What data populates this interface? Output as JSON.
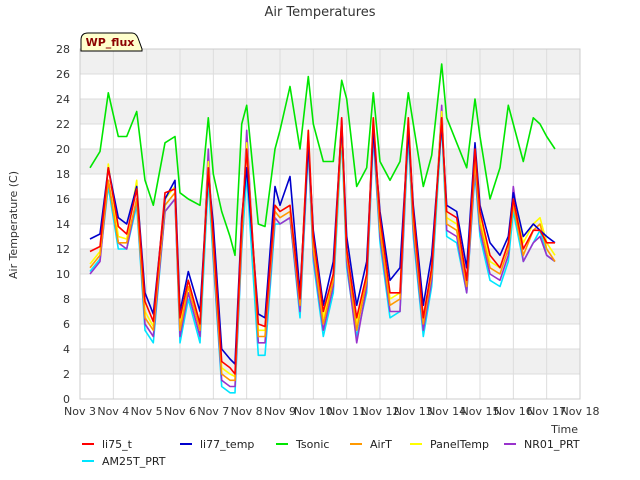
{
  "chart_data": {
    "type": "line",
    "title": "Air Temperatures",
    "xlabel": "Time",
    "ylabel": "Air Temperature (C)",
    "badge": "WP_flux",
    "x_ticks": [
      "Nov 3",
      "Nov 4",
      "Nov 5",
      "Nov 6",
      "Nov 7",
      "Nov 8",
      "Nov 9",
      "Nov 10",
      "Nov 11",
      "Nov 12",
      "Nov 13",
      "Nov 14",
      "Nov 15",
      "Nov 16",
      "Nov 17",
      "Nov 18"
    ],
    "y_ticks": [
      "0",
      "2",
      "4",
      "6",
      "8",
      "10",
      "12",
      "14",
      "16",
      "18",
      "20",
      "22",
      "24",
      "26",
      "28"
    ],
    "xlim": [
      3,
      18
    ],
    "ylim": [
      0,
      28
    ],
    "grid": true,
    "legend_position": "bottom",
    "x": [
      3.3,
      3.6,
      3.85,
      4.15,
      4.4,
      4.7,
      4.95,
      5.2,
      5.55,
      5.85,
      6.0,
      6.25,
      6.6,
      6.85,
      7.0,
      7.25,
      7.5,
      7.65,
      7.85,
      8.0,
      8.35,
      8.55,
      8.85,
      9.0,
      9.3,
      9.6,
      9.85,
      10.0,
      10.3,
      10.6,
      10.85,
      11.0,
      11.3,
      11.6,
      11.8,
      12.0,
      12.3,
      12.6,
      12.85,
      13.0,
      13.3,
      13.55,
      13.85,
      14.0,
      14.3,
      14.6,
      14.85,
      15.0,
      15.3,
      15.6,
      15.85,
      16.0,
      16.3,
      16.6,
      16.8,
      17.0,
      17.25
    ],
    "series": [
      {
        "name": "li75_t",
        "color": "#ff0000",
        "values": [
          11.8,
          12.2,
          18.5,
          13.8,
          13.2,
          16.8,
          7.8,
          6.2,
          16.5,
          16.8,
          6.5,
          9.5,
          6.0,
          18.5,
          13.0,
          3.0,
          2.5,
          2.0,
          14.0,
          20.0,
          6.0,
          5.8,
          15.5,
          15.0,
          15.5,
          8.0,
          21.5,
          13.0,
          7.0,
          10.0,
          22.5,
          12.0,
          6.5,
          10.0,
          22.5,
          14.5,
          8.5,
          8.5,
          22.5,
          15.0,
          6.5,
          10.5,
          22.5,
          15.0,
          14.5,
          9.5,
          20.0,
          15.0,
          11.5,
          10.5,
          12.5,
          16.0,
          12.0,
          13.5,
          13.5,
          12.5,
          12.5
        ]
      },
      {
        "name": "li77_temp",
        "color": "#0000cc",
        "values": [
          12.8,
          13.2,
          18.5,
          14.5,
          14.0,
          17.0,
          8.5,
          6.8,
          16.0,
          17.5,
          7.0,
          10.2,
          7.0,
          18.0,
          14.0,
          4.0,
          3.2,
          2.8,
          14.5,
          18.5,
          6.8,
          6.5,
          17.0,
          15.5,
          17.8,
          8.5,
          20.5,
          13.5,
          7.5,
          11.0,
          22.0,
          13.0,
          7.5,
          11.0,
          21.5,
          15.0,
          9.5,
          10.5,
          21.5,
          15.5,
          7.5,
          11.5,
          22.0,
          15.5,
          15.0,
          10.5,
          20.5,
          15.5,
          12.5,
          11.5,
          13.0,
          16.5,
          13.0,
          14.0,
          13.5,
          13.0,
          12.5
        ]
      },
      {
        "name": "Tsonic",
        "color": "#00e600",
        "values": [
          18.5,
          19.8,
          24.5,
          21.0,
          21.0,
          23.0,
          17.5,
          15.5,
          20.5,
          21.0,
          16.5,
          16.0,
          15.5,
          22.5,
          18.0,
          15.0,
          13.0,
          11.5,
          22.0,
          23.5,
          14.0,
          13.8,
          20.0,
          21.5,
          25.0,
          20.0,
          25.8,
          22.0,
          19.0,
          19.0,
          25.5,
          24.0,
          17.0,
          18.5,
          24.5,
          19.0,
          17.5,
          19.0,
          24.5,
          22.0,
          17.0,
          19.5,
          26.8,
          22.5,
          20.5,
          18.5,
          24.0,
          21.0,
          16.0,
          18.5,
          23.5,
          22.0,
          19.0,
          22.5,
          22.0,
          21.0,
          20.0
        ]
      },
      {
        "name": "AirT",
        "color": "#ff9900",
        "values": [
          10.5,
          11.5,
          17.5,
          12.5,
          12.5,
          16.0,
          6.5,
          5.5,
          15.5,
          16.5,
          5.5,
          9.0,
          5.5,
          18.5,
          12.0,
          2.0,
          1.5,
          1.5,
          13.0,
          20.0,
          5.0,
          5.0,
          15.0,
          14.5,
          15.0,
          7.5,
          21.0,
          12.0,
          6.0,
          9.5,
          21.5,
          11.5,
          5.5,
          9.5,
          22.0,
          13.5,
          7.5,
          8.0,
          22.0,
          14.0,
          6.0,
          10.0,
          22.5,
          14.0,
          13.5,
          9.0,
          19.0,
          14.0,
          10.5,
          10.0,
          12.0,
          15.5,
          11.5,
          13.5,
          14.0,
          12.0,
          11.0
        ]
      },
      {
        "name": "PanelTemp",
        "color": "#ffff00",
        "values": [
          10.8,
          11.8,
          18.8,
          13.0,
          12.8,
          17.5,
          7.0,
          5.8,
          16.0,
          17.0,
          6.0,
          9.5,
          6.0,
          19.0,
          12.5,
          2.5,
          2.0,
          1.8,
          13.5,
          20.5,
          5.5,
          5.5,
          15.5,
          15.0,
          15.5,
          8.0,
          21.5,
          12.5,
          6.5,
          10.0,
          22.0,
          12.0,
          6.0,
          10.0,
          22.5,
          14.0,
          8.0,
          8.5,
          22.5,
          14.5,
          6.5,
          10.5,
          23.0,
          14.5,
          14.0,
          9.5,
          19.5,
          14.5,
          11.0,
          10.5,
          12.5,
          16.0,
          12.5,
          14.0,
          14.5,
          12.5,
          11.5
        ]
      },
      {
        "name": "NR01_PRT",
        "color": "#9933cc",
        "values": [
          10.0,
          11.0,
          17.5,
          12.5,
          12.0,
          16.0,
          6.0,
          5.0,
          15.0,
          16.0,
          5.0,
          8.5,
          5.0,
          20.0,
          11.5,
          1.5,
          1.0,
          1.0,
          12.5,
          21.5,
          4.5,
          4.5,
          14.5,
          14.0,
          14.5,
          7.0,
          20.5,
          11.5,
          5.5,
          9.0,
          22.5,
          11.0,
          4.5,
          9.0,
          21.5,
          13.0,
          7.0,
          7.0,
          22.0,
          13.5,
          5.5,
          9.5,
          23.5,
          13.5,
          13.0,
          8.5,
          18.5,
          13.5,
          10.0,
          9.5,
          11.5,
          17.0,
          11.0,
          12.5,
          13.0,
          11.5,
          11.0
        ]
      },
      {
        "name": "AM25T_PRT",
        "color": "#00e5ff",
        "values": [
          10.2,
          11.2,
          17.0,
          12.0,
          12.0,
          15.5,
          5.5,
          4.5,
          15.0,
          16.0,
          4.5,
          8.0,
          4.5,
          17.5,
          11.0,
          1.0,
          0.5,
          0.5,
          12.0,
          18.0,
          3.5,
          3.5,
          14.0,
          14.0,
          14.5,
          6.5,
          20.0,
          11.0,
          5.0,
          8.5,
          21.0,
          10.5,
          5.0,
          8.5,
          21.0,
          12.5,
          6.5,
          7.0,
          21.0,
          13.0,
          5.0,
          9.0,
          22.0,
          13.0,
          12.5,
          8.5,
          18.0,
          13.0,
          9.5,
          9.0,
          11.0,
          15.0,
          11.0,
          12.5,
          13.5,
          11.5,
          11.0
        ]
      }
    ]
  }
}
